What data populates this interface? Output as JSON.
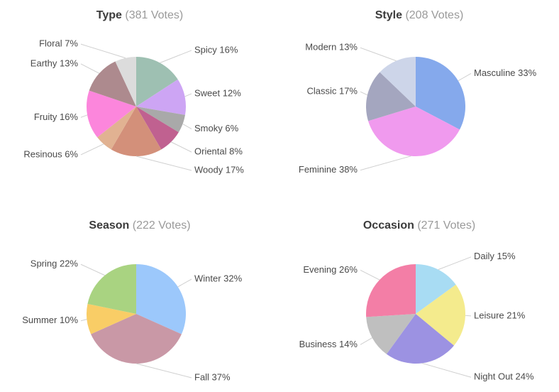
{
  "page": {
    "background": "#ffffff"
  },
  "style": {
    "title_color": "#3b3b3b",
    "votes_color": "#9a9a9a",
    "label_color": "#4a4a4a",
    "leader_line_color": "#cfcfcf"
  },
  "chart_data": [
    {
      "type": "pie",
      "title": "Type",
      "votes_text": "(381 Votes)",
      "total_votes": 381,
      "legend_position": "outside-callouts",
      "slices": [
        {
          "label": "Spicy",
          "pct": 16,
          "color": "#9ec0b2"
        },
        {
          "label": "Sweet",
          "pct": 12,
          "color": "#cda5f4"
        },
        {
          "label": "Smoky",
          "pct": 6,
          "color": "#a9a9a9"
        },
        {
          "label": "Oriental",
          "pct": 8,
          "color": "#c06190"
        },
        {
          "label": "Woody",
          "pct": 17,
          "color": "#d3907a"
        },
        {
          "label": "Resinous",
          "pct": 6,
          "color": "#e1b292"
        },
        {
          "label": "Fruity",
          "pct": 16,
          "color": "#fc86dc"
        },
        {
          "label": "Earthy",
          "pct": 13,
          "color": "#ad8a8e"
        },
        {
          "label": "Floral",
          "pct": 7,
          "color": "#dcdcdc"
        }
      ]
    },
    {
      "type": "pie",
      "title": "Style",
      "votes_text": "(208 Votes)",
      "total_votes": 208,
      "legend_position": "outside-callouts",
      "slices": [
        {
          "label": "Masculine",
          "pct": 33,
          "color": "#85a9ec"
        },
        {
          "label": "Feminine",
          "pct": 38,
          "color": "#f09aee"
        },
        {
          "label": "Classic",
          "pct": 17,
          "color": "#a4a6bf"
        },
        {
          "label": "Modern",
          "pct": 13,
          "color": "#cdd5e9"
        }
      ]
    },
    {
      "type": "pie",
      "title": "Season",
      "votes_text": "(222 Votes)",
      "total_votes": 222,
      "legend_position": "outside-callouts",
      "slices": [
        {
          "label": "Winter",
          "pct": 32,
          "color": "#9cc8fb"
        },
        {
          "label": "Fall",
          "pct": 37,
          "color": "#c998a6"
        },
        {
          "label": "Summer",
          "pct": 10,
          "color": "#f9cd66"
        },
        {
          "label": "Spring",
          "pct": 22,
          "color": "#a9d381"
        }
      ]
    },
    {
      "type": "pie",
      "title": "Occasion",
      "votes_text": "(271 Votes)",
      "total_votes": 271,
      "legend_position": "outside-callouts",
      "slices": [
        {
          "label": "Daily",
          "pct": 15,
          "color": "#a8dcf3"
        },
        {
          "label": "Leisure",
          "pct": 21,
          "color": "#f4eb8d"
        },
        {
          "label": "Night Out",
          "pct": 24,
          "color": "#9c92e2"
        },
        {
          "label": "Business",
          "pct": 14,
          "color": "#bfbfbf"
        },
        {
          "label": "Evening",
          "pct": 26,
          "color": "#f37ea6"
        }
      ]
    }
  ]
}
